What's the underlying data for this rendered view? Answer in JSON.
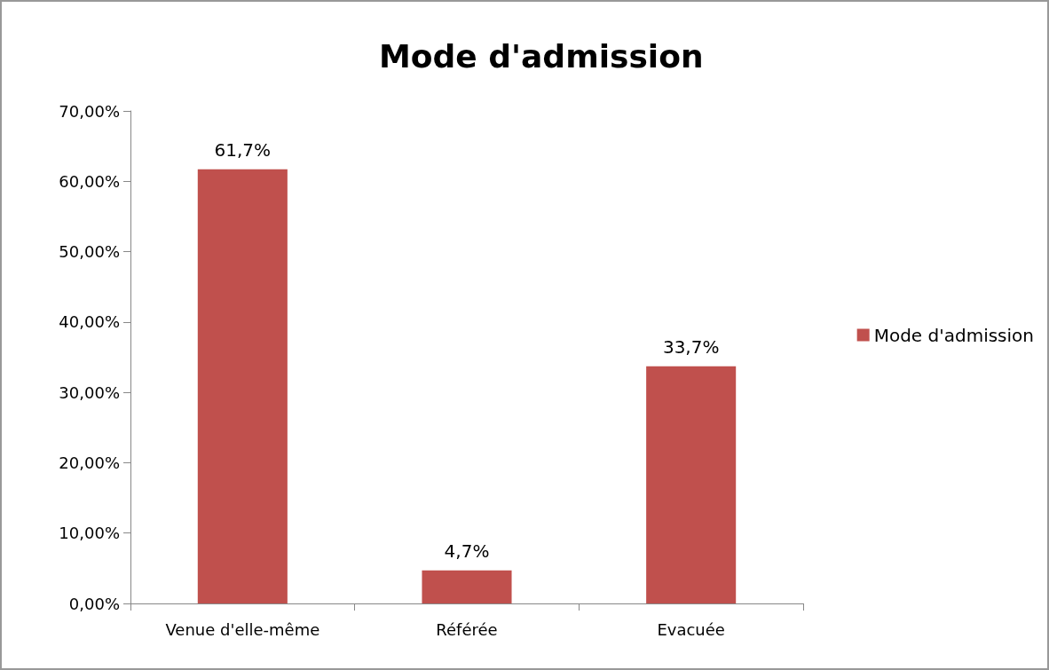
{
  "chart_data": {
    "type": "bar",
    "title": "Mode d'admission",
    "categories": [
      "Venue d'elle-même",
      "Référée",
      "Evacuée"
    ],
    "series": [
      {
        "name": "Mode d'admission",
        "color": "#c0504d",
        "values": [
          61.7,
          4.7,
          33.7
        ],
        "value_labels": [
          "61,7%",
          "4,7%",
          "33,7%"
        ]
      }
    ],
    "ylim": [
      0,
      70
    ],
    "yticks": [
      {
        "value": 0,
        "label": "0,00%"
      },
      {
        "value": 10,
        "label": "10,00%"
      },
      {
        "value": 20,
        "label": "20,00%"
      },
      {
        "value": 30,
        "label": "30,00%"
      },
      {
        "value": 40,
        "label": "40,00%"
      },
      {
        "value": 50,
        "label": "50,00%"
      },
      {
        "value": 60,
        "label": "60,00%"
      },
      {
        "value": 70,
        "label": "70,00%"
      }
    ],
    "grid": false,
    "legend": "right"
  }
}
